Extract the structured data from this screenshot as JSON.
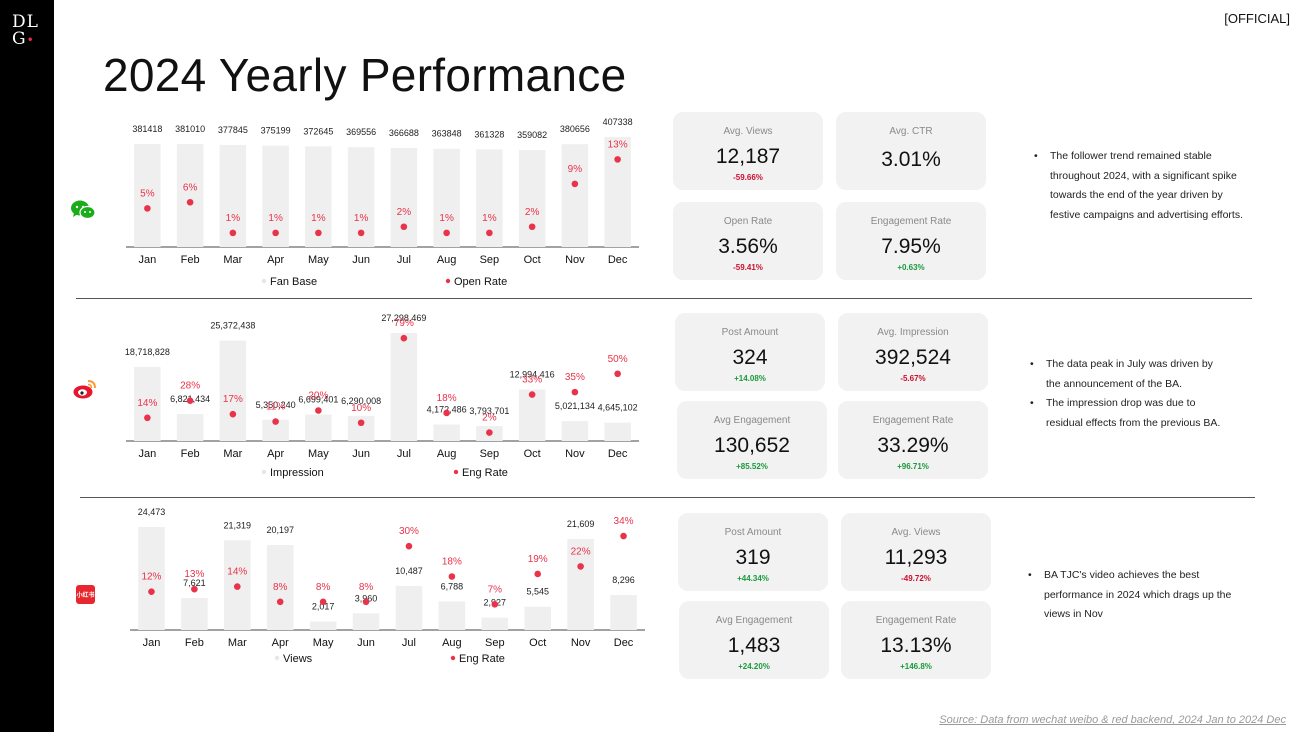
{
  "brand": {
    "logo_line1": "DL",
    "logo_line2": "G",
    "logo_dot": "•"
  },
  "classification": "[OFFICIAL]",
  "title": "2024 Yearly Performance",
  "source": "Source: Data from wechat weibo & red backend, 2024 Jan to 2024 Dec",
  "colors": {
    "bar": "#efefef",
    "rate": "#e8334a",
    "neg": "#c8102e",
    "pos": "#1a9a3c"
  },
  "panels": [
    {
      "platform": "WeChat",
      "icon": "wechat-icon",
      "chart_data": {
        "type": "bar",
        "categories": [
          "Jan",
          "Feb",
          "Mar",
          "Apr",
          "May",
          "Jun",
          "Jul",
          "Aug",
          "Sep",
          "Oct",
          "Nov",
          "Dec"
        ],
        "series": [
          {
            "name": "Fan Base",
            "type": "bar",
            "values": [
              381418,
              381010,
              377845,
              375199,
              372645,
              369556,
              366688,
              363848,
              361328,
              359082,
              380656,
              407338
            ],
            "labels": [
              "381418",
              "381010",
              "377845",
              "375199",
              "372645",
              "369556",
              "366688",
              "363848",
              "361328",
              "359082",
              "380656",
              "407338"
            ]
          },
          {
            "name": "Open Rate",
            "type": "scatter",
            "values": [
              5,
              6,
              1,
              1,
              1,
              1,
              2,
              1,
              1,
              2,
              9,
              13
            ],
            "labels": [
              "5%",
              "6%",
              "1%",
              "1%",
              "1%",
              "1%",
              "2%",
              "1%",
              "1%",
              "2%",
              "9%",
              "13%"
            ]
          }
        ],
        "legend": [
          "Fan Base",
          "Open Rate"
        ]
      },
      "kpis": [
        {
          "label": "Avg. Views",
          "value": "12,187",
          "change": "-59.66%",
          "dir": "neg"
        },
        {
          "label": "Avg. CTR",
          "value": "3.01%",
          "change": "",
          "dir": "neg"
        },
        {
          "label": "Open Rate",
          "value": "3.56%",
          "change": "-59.41%",
          "dir": "neg"
        },
        {
          "label": "Engagement Rate",
          "value": "7.95%",
          "change": "+0.63%",
          "dir": "pos"
        }
      ],
      "notes": [
        "The follower trend remained stable throughout 2024, with a significant spike towards the end of the year driven by festive campaigns and advertising efforts."
      ]
    },
    {
      "platform": "Weibo",
      "icon": "weibo-icon",
      "chart_data": {
        "type": "bar",
        "categories": [
          "Jan",
          "Feb",
          "Mar",
          "Apr",
          "May",
          "Jun",
          "Jul",
          "Aug",
          "Sep",
          "Oct",
          "Nov",
          "Dec"
        ],
        "series": [
          {
            "name": "Impression",
            "type": "bar",
            "values": [
              18718828,
              6821434,
              25372438,
              5350240,
              6699401,
              6290008,
              27298469,
              4172486,
              3793701,
              12994416,
              5021134,
              4645102
            ],
            "labels": [
              "18,718,828",
              "6,821,434",
              "25,372,438",
              "5,350,240",
              "6,699,401",
              "6,290,008",
              "27,298,469",
              "4,172,486",
              "3,793,701",
              "12,994,416",
              "5,021,134",
              "4,645,102"
            ]
          },
          {
            "name": "Eng Rate",
            "type": "scatter",
            "values": [
              14,
              28,
              17,
              11,
              20,
              10,
              79,
              18,
              2,
              33,
              35,
              50
            ],
            "labels": [
              "14%",
              "28%",
              "17%",
              "11%",
              "20%",
              "10%",
              "79%",
              "18%",
              "2%",
              "33%",
              "35%",
              "50%"
            ]
          }
        ],
        "legend": [
          "Impression",
          "Eng Rate"
        ]
      },
      "kpis": [
        {
          "label": "Post Amount",
          "value": "324",
          "change": "+14.08%",
          "dir": "pos"
        },
        {
          "label": "Avg. Impression",
          "value": "392,524",
          "change": "-5.67%",
          "dir": "neg"
        },
        {
          "label": "Avg Engagement",
          "value": "130,652",
          "change": "+85.52%",
          "dir": "pos"
        },
        {
          "label": "Engagement Rate",
          "value": "33.29%",
          "change": "+96.71%",
          "dir": "pos"
        }
      ],
      "notes": [
        "The data peak in July was driven by the announcement of the BA.",
        "The impression drop was due to residual effects from the previous BA."
      ]
    },
    {
      "platform": "RED",
      "icon": "red-icon",
      "icon_text": "小红书",
      "chart_data": {
        "type": "bar",
        "categories": [
          "Jan",
          "Feb",
          "Mar",
          "Apr",
          "May",
          "Jun",
          "Jul",
          "Aug",
          "Sep",
          "Oct",
          "Nov",
          "Dec"
        ],
        "series": [
          {
            "name": "Views",
            "type": "bar",
            "values": [
              24473,
              7621,
              21319,
              20197,
              2017,
              3960,
              10487,
              6788,
              2927,
              5545,
              21609,
              8296
            ],
            "labels": [
              "24,473",
              "7,621",
              "21,319",
              "20,197",
              "2,017",
              "3,960",
              "10,487",
              "6,788",
              "2,927",
              "5,545",
              "21,609",
              "8,296"
            ]
          },
          {
            "name": "Eng Rate",
            "type": "scatter",
            "values": [
              12,
              13,
              14,
              8,
              8,
              8,
              30,
              18,
              7,
              19,
              22,
              34
            ],
            "labels": [
              "12%",
              "13%",
              "14%",
              "8%",
              "8%",
              "8%",
              "30%",
              "18%",
              "7%",
              "19%",
              "22%",
              "34%"
            ]
          }
        ],
        "legend": [
          "Views",
          "Eng Rate"
        ]
      },
      "kpis": [
        {
          "label": "Post Amount",
          "value": "319",
          "change": "+44.34%",
          "dir": "pos"
        },
        {
          "label": "Avg. Views",
          "value": "11,293",
          "change": "-49.72%",
          "dir": "neg"
        },
        {
          "label": "Avg Engagement",
          "value": "1,483",
          "change": "+24.20%",
          "dir": "pos"
        },
        {
          "label": "Engagement Rate",
          "value": "13.13%",
          "change": "+146.8%",
          "dir": "pos"
        }
      ],
      "notes": [
        "BA TJC's video achieves the best performance in 2024 which drags up the views in Nov"
      ]
    }
  ]
}
